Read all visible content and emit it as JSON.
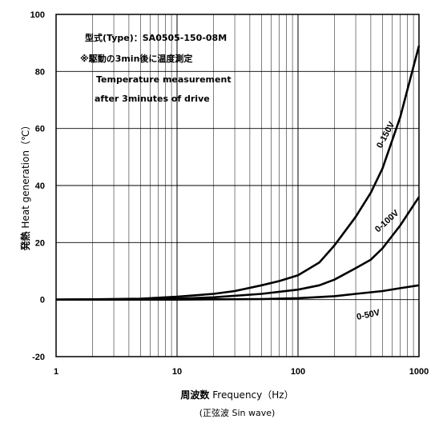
{
  "chart_data": {
    "type": "line",
    "x_scale": "log",
    "xlim": [
      1,
      1000
    ],
    "ylim": [
      -20,
      100
    ],
    "grid": true,
    "x_ticks": [
      "1",
      "10",
      "100",
      "1000"
    ],
    "y_ticks": [
      "100",
      "80",
      "60",
      "40",
      "20",
      "0",
      "-20"
    ],
    "xlabel_main": "周波数",
    "xlabel_sub": " Frequency（Hz）",
    "xlabel_note": "(正弦波 Sin wave)",
    "ylabel_main": "発熱",
    "ylabel_sub": " Heat generation（℃）",
    "annotations": [
      "型式(Type)：SA0505-150-08M",
      "※駆動の3min後に温度測定",
      "Temperature measurement",
      "after 3minutes of drive"
    ],
    "series": [
      {
        "name": "0-150V",
        "x": [
          1,
          2,
          5,
          10,
          20,
          30,
          50,
          70,
          100,
          150,
          200,
          300,
          400,
          500,
          700,
          1000
        ],
        "y": [
          0,
          0.1,
          0.3,
          1,
          2,
          3,
          5,
          6.5,
          8.5,
          13,
          19,
          29,
          37.5,
          46,
          64,
          89
        ]
      },
      {
        "name": "0-100V",
        "x": [
          1,
          5,
          10,
          20,
          50,
          100,
          150,
          200,
          300,
          400,
          500,
          700,
          1000
        ],
        "y": [
          0,
          0.1,
          0.3,
          0.8,
          2,
          3.5,
          5,
          7,
          11,
          14,
          18,
          26,
          36
        ]
      },
      {
        "name": "0-50V",
        "x": [
          1,
          10,
          50,
          100,
          200,
          300,
          500,
          700,
          1000
        ],
        "y": [
          0,
          0,
          0.2,
          0.5,
          1.2,
          2,
          3,
          4,
          5
        ]
      }
    ]
  }
}
